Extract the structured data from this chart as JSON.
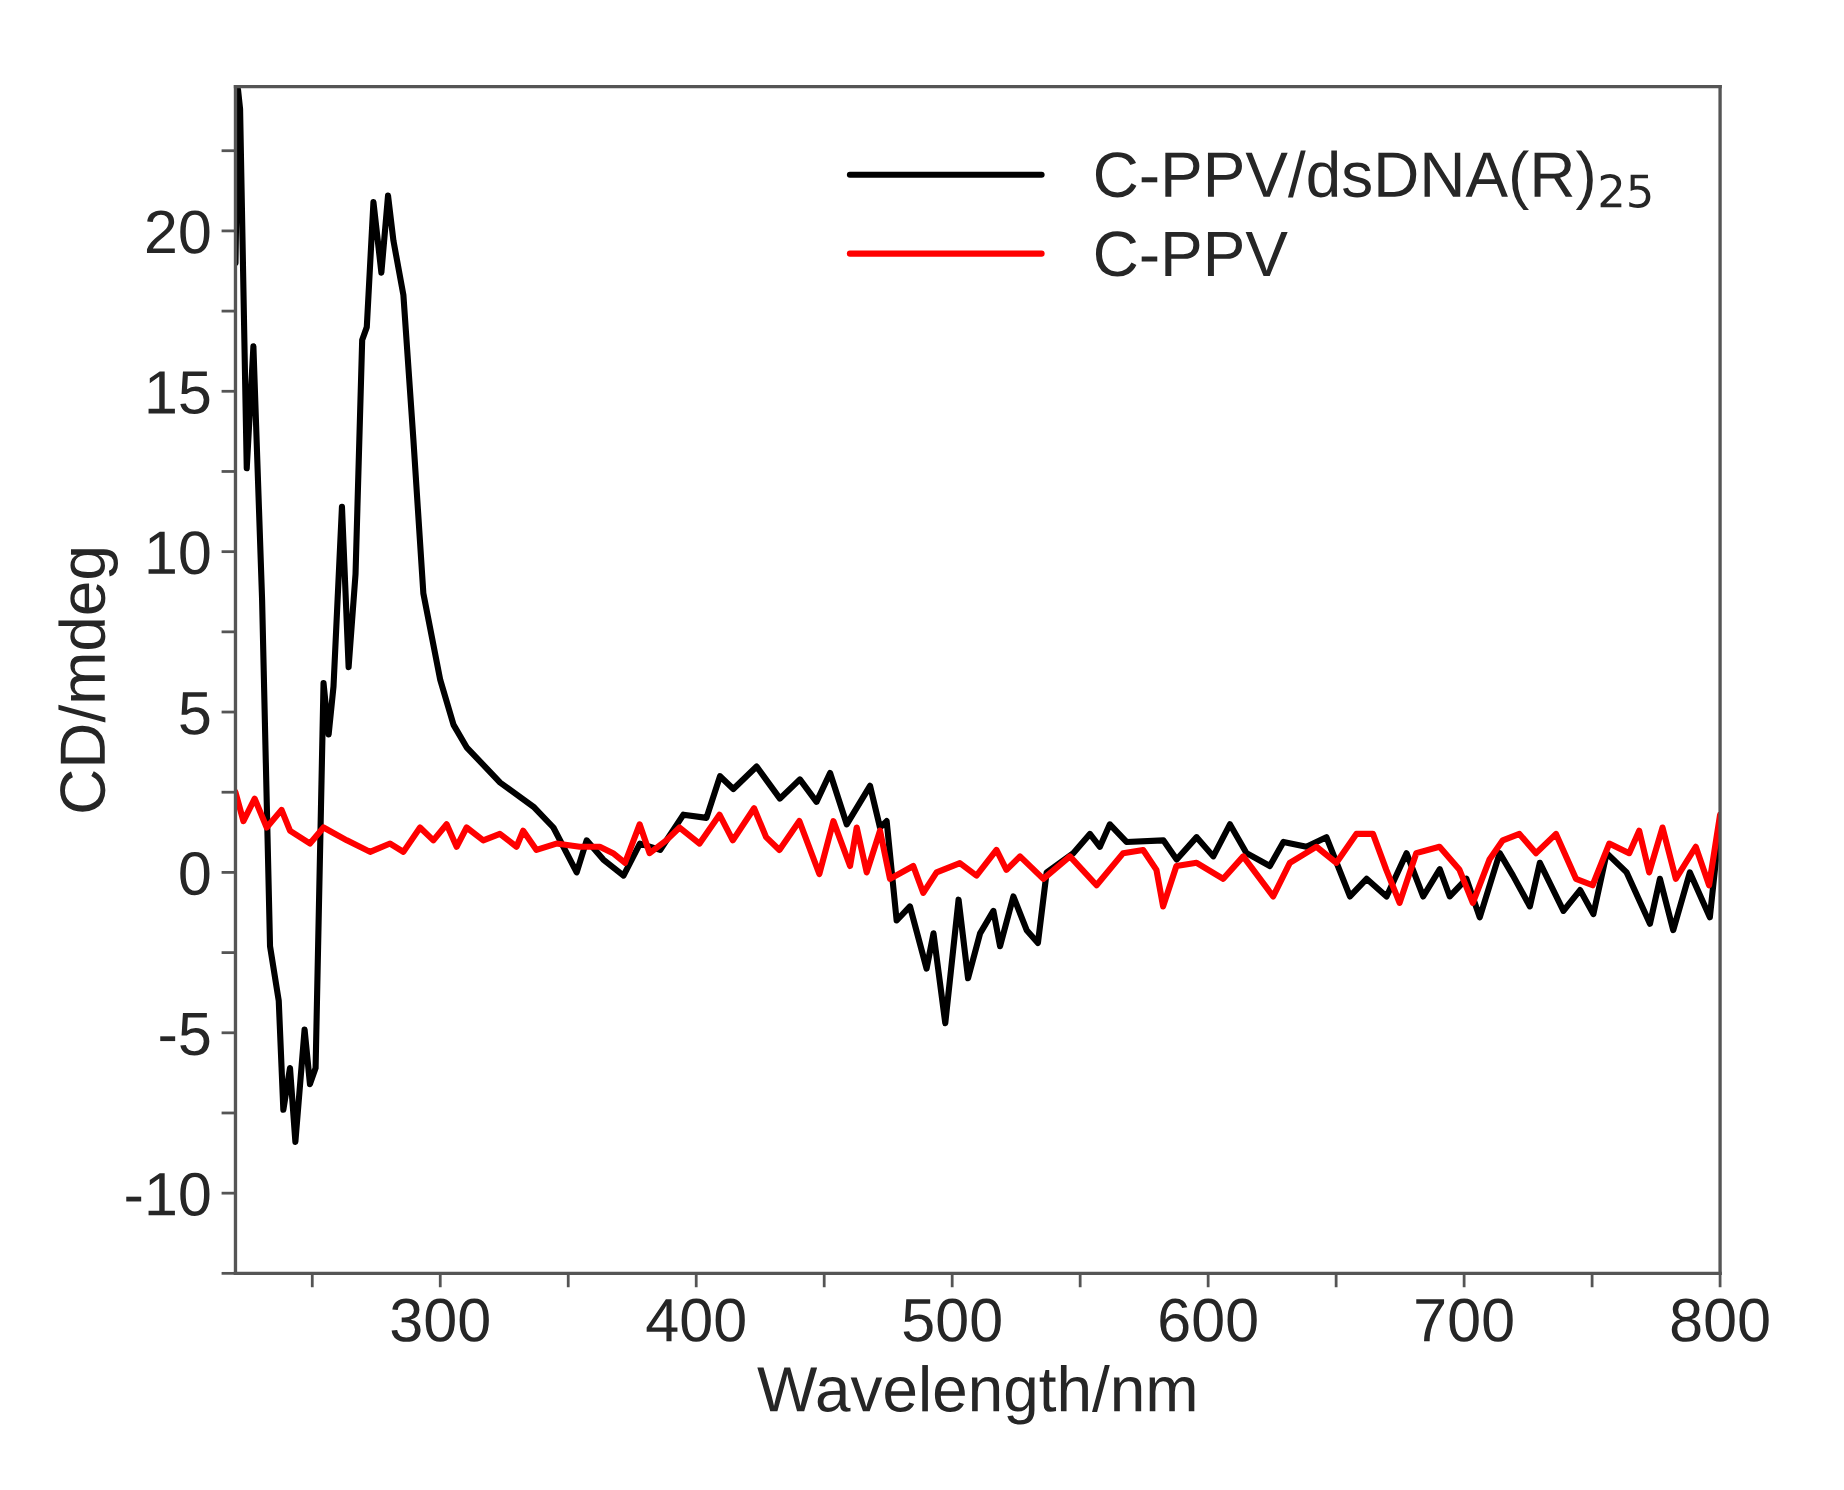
{
  "chart_data": {
    "type": "line",
    "xlabel": "Wavelength/nm",
    "ylabel": "CD/mdeg",
    "xlim": [
      220,
      800
    ],
    "ylim": [
      -12.5,
      24.5
    ],
    "xticks": [
      {
        "value": 250,
        "label": null
      },
      300,
      {
        "value": 350,
        "label": null
      },
      400,
      {
        "value": 450,
        "label": null
      },
      500,
      {
        "value": 550,
        "label": null
      },
      600,
      {
        "value": 650,
        "label": null
      },
      700,
      {
        "value": 750,
        "label": null
      },
      800
    ],
    "yticks": [
      {
        "value": -12.5,
        "label": null
      },
      -10,
      {
        "value": -7.5,
        "label": null
      },
      -5,
      {
        "value": -2.5,
        "label": null
      },
      0,
      {
        "value": 2.5,
        "label": null
      },
      5,
      {
        "value": 7.5,
        "label": null
      },
      10,
      {
        "value": 12.5,
        "label": null
      },
      15,
      {
        "value": 17.5,
        "label": null
      },
      20,
      {
        "value": 22.5,
        "label": null
      }
    ],
    "grid": false,
    "legend": "top right",
    "line_style": "solid",
    "marker": "none",
    "series": [
      {
        "name": "C-PPV/dsDNA(R)$_{25}$",
        "color": "#000000",
        "x": [
          220,
          221,
          221.8,
          224.4,
          227,
          230.4,
          233.5,
          236.9,
          238.7,
          241.3,
          243.4,
          247,
          249.1,
          251.3,
          254.4,
          256.4,
          258.3,
          261.6,
          264.2,
          266.9,
          269.5,
          271.3,
          273.9,
          277,
          279.6,
          281.7,
          285.6,
          289.5,
          293.4,
          300,
          305.2,
          310.3,
          323.4,
          336.4,
          344.2,
          353.3,
          357.2,
          363.7,
          371.6,
          378,
          385.9,
          395,
          404,
          409.3,
          414.5,
          423.6,
          432.7,
          440.5,
          447,
          452.3,
          458.8,
          467.9,
          471.8,
          474.4,
          478.3,
          483.5,
          490,
          492.7,
          497.3,
          502.5,
          506.2,
          510.9,
          516.1,
          518.7,
          523.9,
          529.1,
          533.5,
          536.9,
          547.3,
          553.8,
          557.7,
          561.6,
          568.1,
          582.5,
          587.7,
          595.5,
          602,
          608.5,
          615,
          624.1,
          629.4,
          638.4,
          646.2,
          655.4,
          661.9,
          669.7,
          677.5,
          684,
          690.5,
          694.4,
          700.9,
          706.1,
          713.9,
          719.1,
          725.7,
          729.6,
          738.8,
          745.3,
          750.5,
          755.7,
          763.5,
          772.6,
          776.5,
          781.7,
          788.2,
          796,
          800
        ],
        "values": [
          19,
          24.4,
          23.8,
          12.6,
          16.4,
          8.5,
          -2.3,
          -4.0,
          -7.4,
          -6.1,
          -8.4,
          -4.9,
          -6.6,
          -6.1,
          5.9,
          4.3,
          5.8,
          11.4,
          6.4,
          9.3,
          16.6,
          17.0,
          20.9,
          18.7,
          21.1,
          19.7,
          18.0,
          13.5,
          8.7,
          6.0,
          4.6,
          3.9,
          2.8,
          2.05,
          1.4,
          0.0,
          1.0,
          0.4,
          -0.1,
          0.9,
          0.7,
          1.8,
          1.7,
          3.0,
          2.6,
          3.3,
          2.3,
          2.9,
          2.2,
          3.1,
          1.5,
          2.7,
          1.4,
          1.6,
          -1.5,
          -1.06,
          -3.0,
          -1.9,
          -4.7,
          -0.85,
          -3.3,
          -1.9,
          -1.2,
          -2.3,
          -0.75,
          -1.8,
          -2.2,
          0.0,
          0.6,
          1.2,
          0.8,
          1.5,
          0.95,
          1.0,
          0.4,
          1.1,
          0.5,
          1.5,
          0.6,
          0.2,
          0.95,
          0.8,
          1.1,
          -0.75,
          -0.2,
          -0.75,
          0.6,
          -0.75,
          0.1,
          -0.75,
          -0.2,
          -1.4,
          0.6,
          -0.1,
          -1.06,
          0.3,
          -1.2,
          -0.55,
          -1.3,
          0.6,
          0.0,
          -1.6,
          -0.2,
          -1.8,
          0.0,
          -1.4,
          1.6
        ]
      },
      {
        "name": "C-PPV",
        "color": "#ff0000",
        "x": [
          220,
          223.1,
          227.5,
          232.2,
          238,
          241.3,
          249.1,
          254.4,
          263.5,
          272.6,
          280.4,
          285.6,
          292.1,
          297.3,
          302.5,
          306.4,
          310.3,
          316.8,
          323.3,
          329.8,
          332.4,
          337.6,
          345.4,
          354.5,
          362.3,
          367.5,
          372.2,
          377.9,
          381.8,
          388.3,
          393.5,
          401.3,
          409.1,
          414.3,
          422.6,
          427.3,
          432.5,
          440.3,
          448.1,
          453.6,
          460.1,
          462.7,
          466.6,
          471.8,
          475.7,
          484.8,
          488.7,
          493.9,
          503,
          509.5,
          517.3,
          521.2,
          526.5,
          535.6,
          546,
          556.4,
          566.8,
          574.6,
          579.8,
          582.4,
          587.6,
          595.5,
          605.9,
          613.7,
          625.4,
          631.9,
          642.3,
          650.1,
          657.9,
          664.4,
          669.6,
          674.8,
          681.3,
          690.4,
          698.2,
          703.4,
          709.9,
          715.1,
          721.6,
          728.1,
          735.9,
          743.7,
          750.2,
          756.7,
          764.5,
          768.4,
          772.3,
          777.5,
          782.7,
          790.5,
          795.7,
          800
        ],
        "values": [
          2.5,
          1.6,
          2.3,
          1.4,
          1.95,
          1.3,
          0.9,
          1.4,
          1.0,
          0.64,
          0.9,
          0.64,
          1.4,
          1.0,
          1.5,
          0.8,
          1.4,
          1.0,
          1.2,
          0.8,
          1.3,
          0.7,
          0.9,
          0.8,
          0.8,
          0.6,
          0.3,
          1.5,
          0.6,
          1.0,
          1.4,
          0.9,
          1.8,
          1.0,
          2.0,
          1.1,
          0.7,
          1.6,
          -0.05,
          1.6,
          0.2,
          1.4,
          0.0,
          1.3,
          -0.2,
          0.2,
          -0.64,
          0.0,
          0.29,
          -0.1,
          0.7,
          0.08,
          0.5,
          -0.2,
          0.5,
          -0.4,
          0.6,
          0.7,
          0.08,
          -1.06,
          0.2,
          0.3,
          -0.2,
          0.5,
          -0.75,
          0.3,
          0.8,
          0.3,
          1.2,
          1.2,
          0.08,
          -0.95,
          0.6,
          0.8,
          0.08,
          -0.95,
          0.4,
          1.0,
          1.2,
          0.6,
          1.2,
          -0.2,
          -0.4,
          0.9,
          0.6,
          1.3,
          0.0,
          1.4,
          -0.2,
          0.8,
          -0.4,
          1.8
        ]
      }
    ]
  }
}
